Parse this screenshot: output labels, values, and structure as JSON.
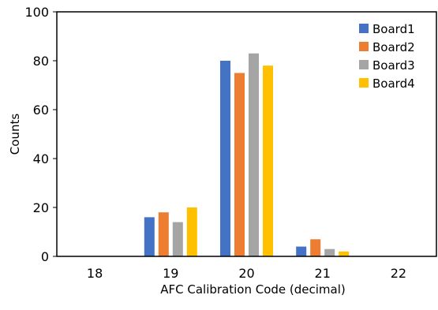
{
  "chart_data": {
    "type": "bar",
    "title": "",
    "xlabel": "AFC Calibration Code (decimal)",
    "ylabel": "Counts",
    "categories": [
      "18",
      "19",
      "20",
      "21",
      "22"
    ],
    "ylim": [
      0,
      100
    ],
    "yticks": [
      0,
      20,
      40,
      60,
      80,
      100
    ],
    "grid": false,
    "legend_position": "top-right",
    "series": [
      {
        "name": "Board1",
        "color": "#4472C4",
        "values": [
          0,
          16,
          80,
          4,
          0
        ]
      },
      {
        "name": "Board2",
        "color": "#ED7D31",
        "values": [
          0,
          18,
          75,
          7,
          0
        ]
      },
      {
        "name": "Board3",
        "color": "#A5A5A5",
        "values": [
          0,
          14,
          83,
          3,
          0
        ]
      },
      {
        "name": "Board4",
        "color": "#FFC000",
        "values": [
          0,
          20,
          78,
          2,
          0
        ]
      }
    ]
  }
}
